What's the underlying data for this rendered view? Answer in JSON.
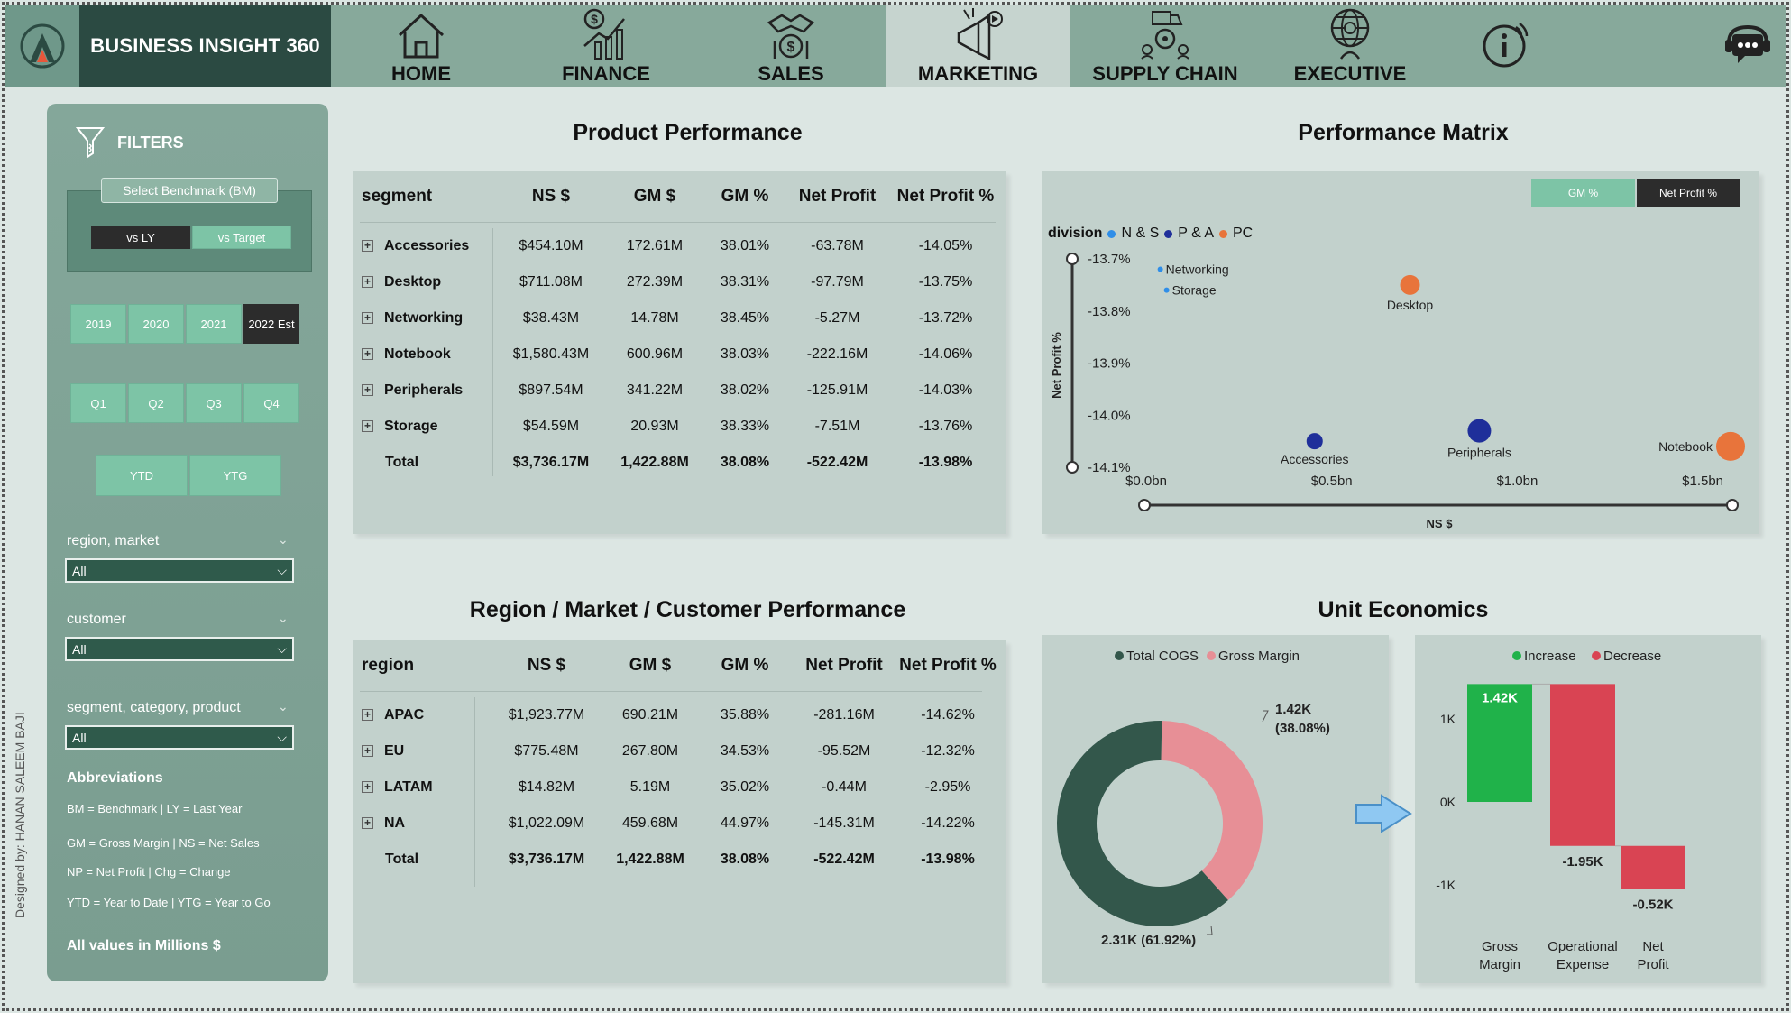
{
  "app": {
    "brand": "BUSINESS INSIGHT 360"
  },
  "nav": [
    {
      "label": "HOME",
      "icon": "home-icon"
    },
    {
      "label": "FINANCE",
      "icon": "finance-chart-icon"
    },
    {
      "label": "SALES",
      "icon": "sales-handshake-icon"
    },
    {
      "label": "MARKETING",
      "icon": "marketing-megaphone-icon",
      "active": true
    },
    {
      "label": "SUPPLY CHAIN",
      "icon": "supply-chain-truck-icon"
    },
    {
      "label": "EXECUTIVE",
      "icon": "executive-globe-icon"
    }
  ],
  "filters": {
    "title": "FILTERS",
    "benchmark_label": "Select Benchmark (BM)",
    "bm_options": [
      "vs LY",
      "vs Target"
    ],
    "bm_selected": "vs LY",
    "years": [
      "2019",
      "2020",
      "2021",
      "2022 Est"
    ],
    "year_selected": "2022 Est",
    "quarters": [
      "Q1",
      "Q2",
      "Q3",
      "Q4"
    ],
    "periods": [
      "YTD",
      "YTG"
    ],
    "dropdowns": [
      {
        "label": "region, market",
        "value": "All"
      },
      {
        "label": "customer",
        "value": "All"
      },
      {
        "label": "segment, category, product",
        "value": "All"
      }
    ],
    "abbr_title": "Abbreviations",
    "abbreviations": [
      "BM = Benchmark | LY = Last Year",
      "GM = Gross Margin | NS = Net Sales",
      "NP = Net Profit | Chg = Change",
      "YTD = Year to Date | YTG = Year to Go"
    ],
    "all_values": "All values in Millions $"
  },
  "designed_by": "Designed by: HANAN SALEEM BAJI",
  "product_performance": {
    "title": "Product Performance",
    "columns": [
      "segment",
      "NS $",
      "GM $",
      "GM %",
      "Net Profit",
      "Net Profit %"
    ],
    "rows": [
      [
        "Accessories",
        "$454.10M",
        "172.61M",
        "38.01%",
        "-63.78M",
        "-14.05%"
      ],
      [
        "Desktop",
        "$711.08M",
        "272.39M",
        "38.31%",
        "-97.79M",
        "-13.75%"
      ],
      [
        "Networking",
        "$38.43M",
        "14.78M",
        "38.45%",
        "-5.27M",
        "-13.72%"
      ],
      [
        "Notebook",
        "$1,580.43M",
        "600.96M",
        "38.03%",
        "-222.16M",
        "-14.06%"
      ],
      [
        "Peripherals",
        "$897.54M",
        "341.22M",
        "38.02%",
        "-125.91M",
        "-14.03%"
      ],
      [
        "Storage",
        "$54.59M",
        "20.93M",
        "38.33%",
        "-7.51M",
        "-13.76%"
      ]
    ],
    "total": [
      "Total",
      "$3,736.17M",
      "1,422.88M",
      "38.08%",
      "-522.42M",
      "-13.98%"
    ]
  },
  "performance_matrix": {
    "title": "Performance Matrix",
    "toggle": [
      "GM %",
      "Net Profit %"
    ],
    "toggle_selected": "Net Profit %",
    "legend_title": "division",
    "legend": [
      {
        "name": "N & S",
        "color": "#2f8ee8"
      },
      {
        "name": "P & A",
        "color": "#1f2f9a"
      },
      {
        "name": "PC",
        "color": "#e8743b"
      }
    ]
  },
  "region_performance": {
    "title": "Region / Market / Customer Performance",
    "columns": [
      "region",
      "NS $",
      "GM $",
      "GM %",
      "Net Profit",
      "Net Profit %"
    ],
    "rows": [
      [
        "APAC",
        "$1,923.77M",
        "690.21M",
        "35.88%",
        "-281.16M",
        "-14.62%"
      ],
      [
        "EU",
        "$775.48M",
        "267.80M",
        "34.53%",
        "-95.52M",
        "-12.32%"
      ],
      [
        "LATAM",
        "$14.82M",
        "5.19M",
        "35.02%",
        "-0.44M",
        "-2.95%"
      ],
      [
        "NA",
        "$1,022.09M",
        "459.68M",
        "44.97%",
        "-145.31M",
        "-14.22%"
      ]
    ],
    "total": [
      "Total",
      "$3,736.17M",
      "1,422.88M",
      "38.08%",
      "-522.42M",
      "-13.98%"
    ]
  },
  "unit_economics": {
    "title": "Unit Economics"
  },
  "chart_data": [
    {
      "type": "scatter",
      "xlabel": "NS $",
      "ylabel": "Net Profit %",
      "x_ticks": [
        "$0.0bn",
        "$0.5bn",
        "$1.0bn",
        "$1.5bn"
      ],
      "y_ticks": [
        "-13.7%",
        "-13.8%",
        "-13.9%",
        "-14.0%",
        "-14.1%"
      ],
      "xlim": [
        0,
        1.58
      ],
      "ylim": [
        -14.1,
        -13.7
      ],
      "points": [
        {
          "label": "Networking",
          "x": 0.038,
          "y": -13.72,
          "division": "N & S",
          "size": 3
        },
        {
          "label": "Storage",
          "x": 0.055,
          "y": -13.76,
          "division": "N & S",
          "size": 3
        },
        {
          "label": "Desktop",
          "x": 0.711,
          "y": -13.75,
          "division": "PC",
          "size": 11
        },
        {
          "label": "Accessories",
          "x": 0.454,
          "y": -14.05,
          "division": "P & A",
          "size": 9
        },
        {
          "label": "Peripherals",
          "x": 0.898,
          "y": -14.03,
          "division": "P & A",
          "size": 13
        },
        {
          "label": "Notebook",
          "x": 1.58,
          "y": -14.06,
          "division": "PC",
          "size": 16
        }
      ]
    },
    {
      "type": "pie",
      "donut": true,
      "legend": [
        {
          "name": "Total COGS",
          "color": "#33574b"
        },
        {
          "name": "Gross Margin",
          "color": "#e78f96"
        }
      ],
      "slices": [
        {
          "name": "Total COGS",
          "value": 2.31,
          "label": "2.31K (61.92%)"
        },
        {
          "name": "Gross Margin",
          "value": 1.42,
          "label": "1.42K",
          "label2": "(38.08%)"
        }
      ]
    },
    {
      "type": "bar",
      "subtype": "waterfall",
      "legend": [
        {
          "name": "Increase",
          "color": "#20b24a"
        },
        {
          "name": "Decrease",
          "color": "#d94453"
        }
      ],
      "y_ticks": [
        "1K",
        "0K",
        "-1K"
      ],
      "ylim": [
        -1.0,
        1.42
      ],
      "steps": [
        {
          "category": "Gross Margin",
          "value": 1.42,
          "label": "1.42K"
        },
        {
          "category": "Operational Expense",
          "value": -1.95,
          "label": "-1.95K"
        },
        {
          "category": "Net Profit",
          "value": -0.52,
          "label": "-0.52K"
        }
      ]
    }
  ]
}
